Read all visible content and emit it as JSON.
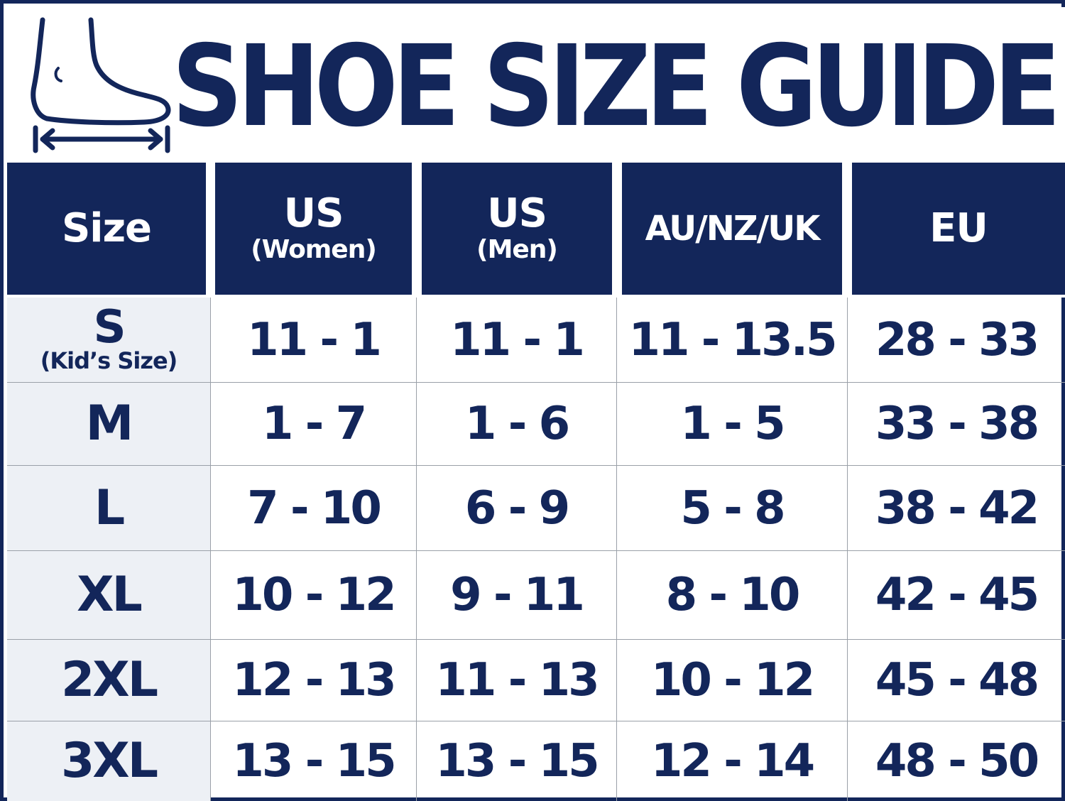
{
  "title": "SHOE SIZE GUIDE",
  "icons": {
    "foot": "foot-measure-icon"
  },
  "colors": {
    "navy": "#13265a",
    "size_column_bg": "#edf0f5",
    "grid_line": "#9aa0a8"
  },
  "header": {
    "size": "Size",
    "us_women_main": "US",
    "us_women_sub": "(Women)",
    "us_men_main": "US",
    "us_men_sub": "(Men)",
    "au_nz_uk": "AU/NZ/UK",
    "eu": "EU"
  },
  "rows": [
    {
      "size": "S",
      "size_note": "(Kid’s Size)",
      "us_women": "11 - 1",
      "us_men": "11 - 1",
      "au_nz_uk": "11 - 13.5",
      "eu": "28 - 33"
    },
    {
      "size": "M",
      "us_women": "1 - 7",
      "us_men": "1 - 6",
      "au_nz_uk": "1 - 5",
      "eu": "33 - 38"
    },
    {
      "size": "L",
      "us_women": "7 - 10",
      "us_men": "6 - 9",
      "au_nz_uk": "5 - 8",
      "eu": "38 - 42"
    },
    {
      "size": "XL",
      "us_women": "10 - 12",
      "us_men": "9 - 11",
      "au_nz_uk": "8 - 10",
      "eu": "42 - 45"
    },
    {
      "size": "2XL",
      "us_women": "12 - 13",
      "us_men": "11 - 13",
      "au_nz_uk": "10 - 12",
      "eu": "45 - 48"
    },
    {
      "size": "3XL",
      "us_women": "13 - 15",
      "us_men": "13 - 15",
      "au_nz_uk": "12 - 14",
      "eu": "48 - 50"
    }
  ]
}
